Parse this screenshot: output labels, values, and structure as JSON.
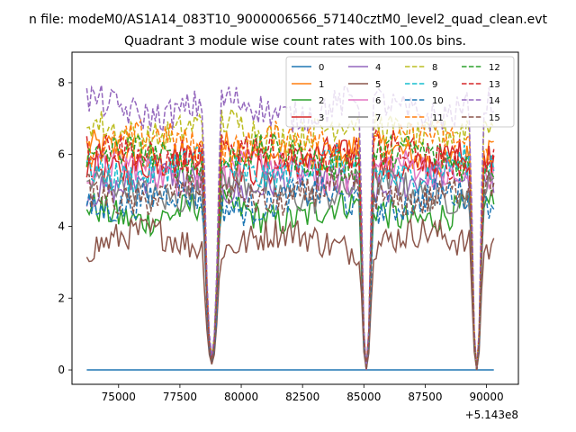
{
  "figure": {
    "suptitle": "n file: modeM0/AS1A14_083T10_9000006566_57140cztM0_level2_quad_clean.evt"
  },
  "chart_data": {
    "type": "line",
    "title": "Quadrant 3 module wise count rates with 100.0s bins.",
    "xlabel": "",
    "ylabel": "",
    "x_offset_label": "+5.143e8",
    "xlim": [
      73100,
      91300
    ],
    "ylim": [
      -0.4,
      8.85
    ],
    "x_ticks": [
      75000,
      77500,
      80000,
      82500,
      85000,
      87500,
      90000
    ],
    "x_tick_labels": [
      "75000",
      "77500",
      "80000",
      "82500",
      "85000",
      "87500",
      "90000"
    ],
    "y_ticks": [
      0,
      2,
      4,
      6,
      8
    ],
    "y_tick_labels": [
      "0",
      "2",
      "4",
      "6",
      "8"
    ],
    "grid": false,
    "legend_position": "top-right",
    "legend_columns": 4,
    "x_range": [
      73700,
      90300
    ],
    "bin_width": 100,
    "dips": [
      {
        "center": 78800,
        "half_width": 350,
        "min_value": 0.05
      },
      {
        "center": 85100,
        "half_width": 250,
        "min_value": 0.0
      },
      {
        "center": 89600,
        "half_width": 250,
        "min_value": 0.0
      }
    ],
    "series": [
      {
        "name": "0",
        "color": "#1f77b4",
        "dash": "solid",
        "level": 0.0
      },
      {
        "name": "1",
        "color": "#ff7f0e",
        "dash": "solid",
        "level": 6.0
      },
      {
        "name": "2",
        "color": "#2ca02c",
        "dash": "solid",
        "level": 4.4
      },
      {
        "name": "3",
        "color": "#d62728",
        "dash": "solid",
        "level": 5.8
      },
      {
        "name": "4",
        "color": "#9467bd",
        "dash": "solid",
        "level": 5.2
      },
      {
        "name": "5",
        "color": "#8c564b",
        "dash": "solid",
        "level": 3.6
      },
      {
        "name": "6",
        "color": "#e377c2",
        "dash": "solid",
        "level": 5.5
      },
      {
        "name": "7",
        "color": "#7f7f7f",
        "dash": "solid",
        "level": 5.0
      },
      {
        "name": "8",
        "color": "#bcbd22",
        "dash": "dashed",
        "level": 6.7
      },
      {
        "name": "9",
        "color": "#17becf",
        "dash": "dashed",
        "level": 5.6
      },
      {
        "name": "10",
        "color": "#1f77b4",
        "dash": "dashed",
        "level": 4.7
      },
      {
        "name": "11",
        "color": "#ff7f0e",
        "dash": "dashed",
        "level": 6.3
      },
      {
        "name": "12",
        "color": "#2ca02c",
        "dash": "dashed",
        "level": 5.9
      },
      {
        "name": "13",
        "color": "#d62728",
        "dash": "dashed",
        "level": 6.0
      },
      {
        "name": "14",
        "color": "#9467bd",
        "dash": "dashed",
        "level": 7.3
      },
      {
        "name": "15",
        "color": "#8c564b",
        "dash": "dashed",
        "level": 4.9
      }
    ]
  }
}
